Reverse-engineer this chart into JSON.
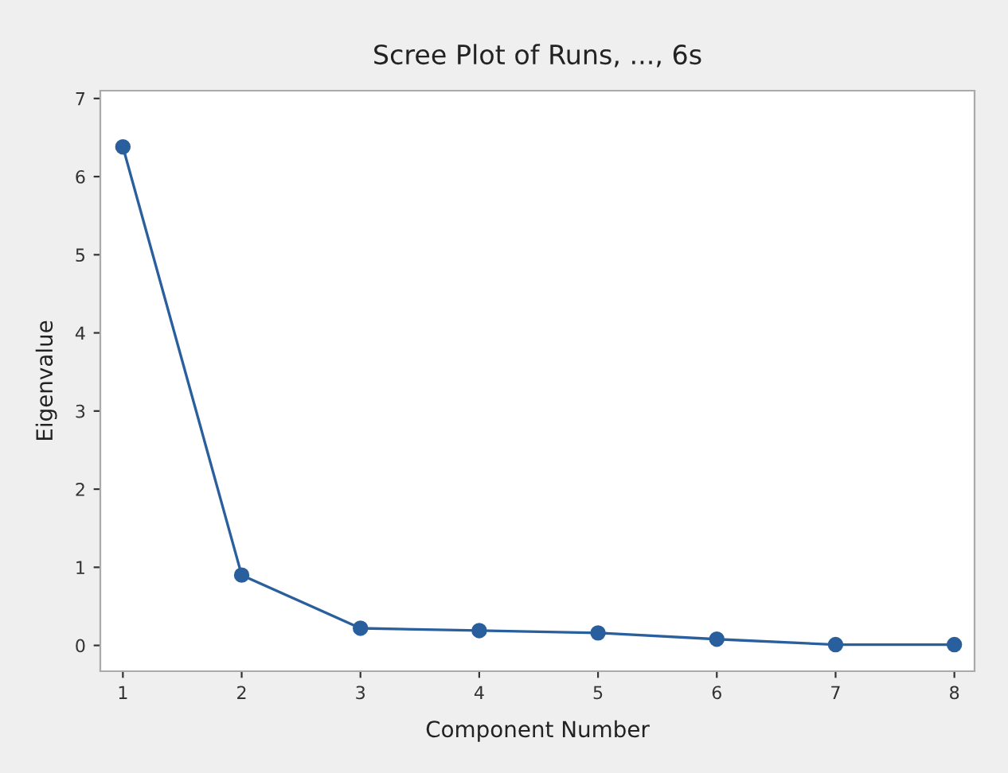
{
  "chart_data": {
    "type": "line",
    "title": "Scree Plot of Runs, ..., 6s",
    "xlabel": "Component Number",
    "ylabel": "Eigenvalue",
    "x": [
      1,
      2,
      3,
      4,
      5,
      6,
      7,
      8
    ],
    "series": [
      {
        "color": "#2a5f9e",
        "values": [
          6.38,
          0.9,
          0.22,
          0.19,
          0.16,
          0.08,
          0.01,
          0.01
        ]
      }
    ],
    "xlim": [
      0.81,
      8.17
    ],
    "xticks": [
      1,
      2,
      3,
      4,
      5,
      6,
      7,
      8
    ],
    "ylim": [
      -0.33,
      7.1
    ],
    "yticks": [
      0,
      1,
      2,
      3,
      4,
      5,
      6,
      7
    ],
    "marker": "circle",
    "line_style": "solid",
    "grid": false,
    "legend": false
  }
}
